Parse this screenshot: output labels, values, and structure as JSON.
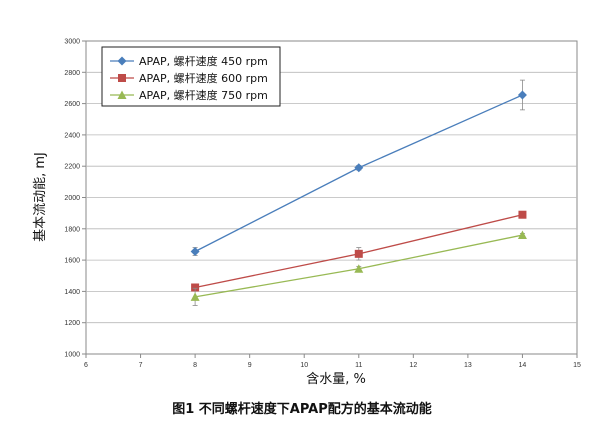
{
  "chart_data": {
    "type": "line",
    "caption": "图1 不同螺杆速度下APAP配方的基本流动能",
    "xlabel": "含水量, %",
    "ylabel": "基本流动能, mJ",
    "xlim": [
      6,
      15
    ],
    "ylim": [
      1000,
      3000
    ],
    "x_ticks": [
      "6",
      "7",
      "8",
      "9",
      "10",
      "11",
      "12",
      "13",
      "14",
      "15"
    ],
    "y_ticks": [
      "1000",
      "1200",
      "1400",
      "1600",
      "1800",
      "2000",
      "2200",
      "2400",
      "2600",
      "2800",
      "3000"
    ],
    "grid": "horizontal",
    "legend_position": "top-left",
    "x": [
      8,
      11,
      14
    ],
    "series": [
      {
        "name": "APAP, 螺杆速度 450 rpm",
        "values": [
          1655,
          2190,
          2655
        ],
        "errors": [
          25,
          15,
          95
        ],
        "color": "#4a7ebb",
        "marker": "diamond"
      },
      {
        "name": "APAP, 螺杆速度 600 rpm",
        "values": [
          1425,
          1640,
          1890
        ],
        "errors": [
          15,
          40,
          15
        ],
        "color": "#be4b48",
        "marker": "square"
      },
      {
        "name": "APAP, 螺杆速度 750 rpm",
        "values": [
          1365,
          1545,
          1760
        ],
        "errors": [
          55,
          15,
          10
        ],
        "color": "#98b954",
        "marker": "triangle"
      }
    ]
  }
}
